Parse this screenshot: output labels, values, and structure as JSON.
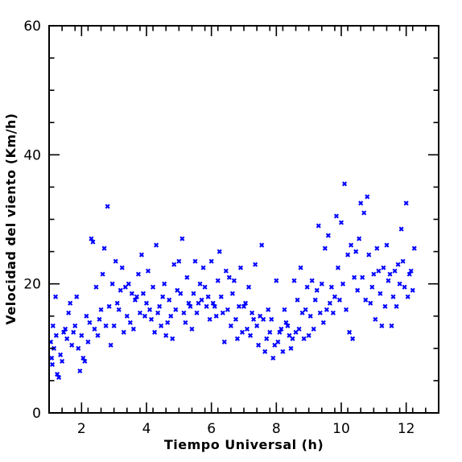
{
  "chart_data": {
    "type": "scatter",
    "title": "",
    "xlabel": "Tiempo Universal (h)",
    "ylabel": "Velocidad del viento (Km/h)",
    "xlim": [
      1,
      13
    ],
    "ylim": [
      0,
      60
    ],
    "x_ticks": [
      2,
      4,
      6,
      8,
      10,
      12
    ],
    "y_ticks": [
      0,
      20,
      40,
      60
    ],
    "x_ticks_labels": [
      "2",
      "4",
      "6",
      "8",
      "10",
      "12"
    ],
    "y_ticks_labels": [
      "0",
      "20",
      "40",
      "60"
    ],
    "x_minor_step": 0.4,
    "y_minor_step": 5,
    "grid": false,
    "marker": "x",
    "color": "#0000ff",
    "series": [
      {
        "points": [
          [
            1.05,
            11.0
          ],
          [
            1.08,
            8.5
          ],
          [
            1.1,
            7.5
          ],
          [
            1.12,
            13.5
          ],
          [
            1.15,
            10.0
          ],
          [
            1.2,
            18.0
          ],
          [
            1.22,
            12.0
          ],
          [
            1.25,
            6.0
          ],
          [
            1.3,
            5.5
          ],
          [
            1.35,
            9.0
          ],
          [
            1.4,
            8.0
          ],
          [
            1.45,
            12.5
          ],
          [
            1.5,
            13.0
          ],
          [
            1.55,
            11.5
          ],
          [
            1.6,
            15.5
          ],
          [
            1.65,
            17.0
          ],
          [
            1.7,
            10.5
          ],
          [
            1.75,
            12.5
          ],
          [
            1.8,
            13.5
          ],
          [
            1.85,
            18.0
          ],
          [
            1.9,
            10.0
          ],
          [
            1.95,
            6.5
          ],
          [
            2.0,
            12.0
          ],
          [
            2.05,
            8.5
          ],
          [
            2.1,
            8.0
          ],
          [
            2.15,
            15.0
          ],
          [
            2.2,
            11.0
          ],
          [
            2.25,
            14.0
          ],
          [
            2.3,
            27.0
          ],
          [
            2.35,
            26.5
          ],
          [
            2.4,
            13.0
          ],
          [
            2.45,
            19.5
          ],
          [
            2.5,
            12.0
          ],
          [
            2.55,
            14.5
          ],
          [
            2.6,
            16.0
          ],
          [
            2.65,
            21.5
          ],
          [
            2.7,
            25.5
          ],
          [
            2.75,
            13.5
          ],
          [
            2.8,
            32.0
          ],
          [
            2.85,
            16.5
          ],
          [
            2.9,
            10.5
          ],
          [
            2.95,
            20.0
          ],
          [
            3.0,
            13.5
          ],
          [
            3.05,
            23.5
          ],
          [
            3.1,
            17.0
          ],
          [
            3.15,
            16.0
          ],
          [
            3.2,
            19.0
          ],
          [
            3.25,
            22.5
          ],
          [
            3.3,
            12.5
          ],
          [
            3.35,
            19.5
          ],
          [
            3.4,
            15.0
          ],
          [
            3.45,
            20.0
          ],
          [
            3.5,
            14.0
          ],
          [
            3.55,
            18.5
          ],
          [
            3.6,
            13.0
          ],
          [
            3.65,
            17.5
          ],
          [
            3.7,
            18.0
          ],
          [
            3.75,
            21.5
          ],
          [
            3.8,
            15.5
          ],
          [
            3.85,
            24.5
          ],
          [
            3.9,
            18.5
          ],
          [
            3.95,
            15.0
          ],
          [
            4.0,
            17.0
          ],
          [
            4.05,
            22.0
          ],
          [
            4.1,
            16.0
          ],
          [
            4.15,
            14.5
          ],
          [
            4.2,
            19.5
          ],
          [
            4.25,
            12.5
          ],
          [
            4.3,
            26.0
          ],
          [
            4.35,
            15.5
          ],
          [
            4.4,
            16.5
          ],
          [
            4.45,
            13.5
          ],
          [
            4.5,
            18.0
          ],
          [
            4.55,
            20.0
          ],
          [
            4.6,
            12.0
          ],
          [
            4.65,
            14.0
          ],
          [
            4.7,
            17.5
          ],
          [
            4.75,
            15.0
          ],
          [
            4.8,
            11.5
          ],
          [
            4.85,
            23.0
          ],
          [
            4.9,
            16.0
          ],
          [
            4.95,
            19.0
          ],
          [
            5.0,
            23.5
          ],
          [
            5.05,
            18.5
          ],
          [
            5.1,
            27.0
          ],
          [
            5.15,
            15.5
          ],
          [
            5.2,
            14.0
          ],
          [
            5.25,
            21.0
          ],
          [
            5.3,
            17.0
          ],
          [
            5.35,
            16.5
          ],
          [
            5.4,
            13.0
          ],
          [
            5.45,
            18.5
          ],
          [
            5.5,
            23.5
          ],
          [
            5.55,
            15.5
          ],
          [
            5.6,
            17.0
          ],
          [
            5.65,
            20.0
          ],
          [
            5.7,
            17.5
          ],
          [
            5.75,
            22.5
          ],
          [
            5.8,
            19.5
          ],
          [
            5.85,
            16.5
          ],
          [
            5.9,
            18.0
          ],
          [
            5.95,
            14.5
          ],
          [
            6.0,
            23.5
          ],
          [
            6.05,
            17.0
          ],
          [
            6.1,
            16.5
          ],
          [
            6.15,
            15.0
          ],
          [
            6.2,
            20.5
          ],
          [
            6.25,
            25.0
          ],
          [
            6.3,
            18.0
          ],
          [
            6.35,
            15.5
          ],
          [
            6.4,
            11.0
          ],
          [
            6.45,
            22.0
          ],
          [
            6.5,
            16.0
          ],
          [
            6.55,
            21.0
          ],
          [
            6.6,
            13.5
          ],
          [
            6.65,
            18.5
          ],
          [
            6.7,
            20.5
          ],
          [
            6.75,
            14.5
          ],
          [
            6.8,
            11.5
          ],
          [
            6.85,
            16.5
          ],
          [
            6.9,
            22.5
          ],
          [
            6.95,
            12.5
          ],
          [
            7.0,
            16.5
          ],
          [
            7.05,
            17.0
          ],
          [
            7.1,
            13.0
          ],
          [
            7.15,
            19.5
          ],
          [
            7.2,
            12.0
          ],
          [
            7.25,
            15.5
          ],
          [
            7.3,
            14.5
          ],
          [
            7.35,
            23.0
          ],
          [
            7.4,
            13.5
          ],
          [
            7.45,
            10.5
          ],
          [
            7.5,
            15.0
          ],
          [
            7.55,
            26.0
          ],
          [
            7.6,
            14.5
          ],
          [
            7.65,
            9.5
          ],
          [
            7.7,
            11.5
          ],
          [
            7.75,
            16.0
          ],
          [
            7.8,
            12.5
          ],
          [
            7.85,
            14.5
          ],
          [
            7.9,
            8.5
          ],
          [
            7.95,
            10.5
          ],
          [
            8.0,
            20.5
          ],
          [
            8.05,
            11.0
          ],
          [
            8.1,
            12.5
          ],
          [
            8.15,
            13.0
          ],
          [
            8.2,
            9.5
          ],
          [
            8.25,
            16.0
          ],
          [
            8.3,
            14.0
          ],
          [
            8.35,
            13.5
          ],
          [
            8.4,
            12.0
          ],
          [
            8.45,
            10.0
          ],
          [
            8.5,
            11.5
          ],
          [
            8.55,
            20.5
          ],
          [
            8.6,
            12.5
          ],
          [
            8.65,
            17.5
          ],
          [
            8.7,
            13.0
          ],
          [
            8.75,
            22.5
          ],
          [
            8.8,
            15.5
          ],
          [
            8.85,
            11.5
          ],
          [
            8.9,
            16.0
          ],
          [
            8.95,
            19.5
          ],
          [
            9.0,
            12.0
          ],
          [
            9.05,
            15.0
          ],
          [
            9.1,
            20.5
          ],
          [
            9.15,
            13.0
          ],
          [
            9.2,
            17.5
          ],
          [
            9.25,
            19.0
          ],
          [
            9.3,
            29.0
          ],
          [
            9.35,
            15.5
          ],
          [
            9.4,
            20.0
          ],
          [
            9.45,
            14.0
          ],
          [
            9.5,
            25.5
          ],
          [
            9.55,
            16.0
          ],
          [
            9.6,
            27.5
          ],
          [
            9.65,
            17.0
          ],
          [
            9.7,
            19.5
          ],
          [
            9.75,
            15.5
          ],
          [
            9.8,
            18.0
          ],
          [
            9.85,
            30.5
          ],
          [
            9.9,
            22.5
          ],
          [
            9.95,
            17.5
          ],
          [
            10.0,
            29.5
          ],
          [
            10.05,
            20.0
          ],
          [
            10.1,
            35.5
          ],
          [
            10.15,
            16.0
          ],
          [
            10.2,
            24.5
          ],
          [
            10.25,
            12.5
          ],
          [
            10.3,
            26.0
          ],
          [
            10.35,
            11.5
          ],
          [
            10.4,
            21.0
          ],
          [
            10.45,
            25.0
          ],
          [
            10.5,
            19.0
          ],
          [
            10.55,
            27.0
          ],
          [
            10.6,
            32.5
          ],
          [
            10.65,
            21.0
          ],
          [
            10.7,
            31.0
          ],
          [
            10.75,
            17.5
          ],
          [
            10.8,
            33.5
          ],
          [
            10.85,
            24.5
          ],
          [
            10.9,
            17.0
          ],
          [
            10.95,
            19.5
          ],
          [
            11.0,
            21.5
          ],
          [
            11.05,
            14.5
          ],
          [
            11.1,
            25.5
          ],
          [
            11.15,
            22.0
          ],
          [
            11.2,
            18.5
          ],
          [
            11.25,
            13.5
          ],
          [
            11.3,
            22.5
          ],
          [
            11.35,
            16.5
          ],
          [
            11.4,
            26.0
          ],
          [
            11.45,
            20.5
          ],
          [
            11.5,
            21.5
          ],
          [
            11.55,
            13.5
          ],
          [
            11.6,
            18.0
          ],
          [
            11.65,
            22.0
          ],
          [
            11.7,
            16.5
          ],
          [
            11.75,
            23.0
          ],
          [
            11.8,
            20.0
          ],
          [
            11.85,
            28.5
          ],
          [
            11.9,
            23.5
          ],
          [
            11.95,
            19.5
          ],
          [
            12.0,
            32.5
          ],
          [
            12.05,
            18.0
          ],
          [
            12.1,
            21.5
          ],
          [
            12.15,
            22.0
          ],
          [
            12.2,
            19.0
          ],
          [
            12.25,
            25.5
          ]
        ]
      }
    ]
  }
}
